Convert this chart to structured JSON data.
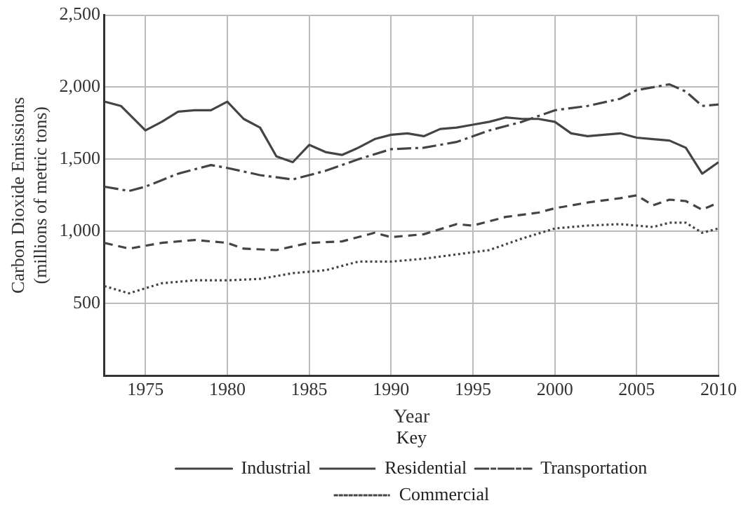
{
  "chart_data": {
    "type": "line",
    "xlabel": "Year",
    "ylabel": "Carbon Dioxide Emissions\n(millions of metric tons)",
    "legend_title": "Key",
    "legend": "bottom",
    "grid": true,
    "marker": "none",
    "xlim": [
      1972.5,
      2010
    ],
    "xticks": [
      1975,
      1980,
      1985,
      1990,
      1995,
      2000,
      2005,
      2010
    ],
    "ylim": [
      0,
      2500
    ],
    "yticks": [
      {
        "value": 0,
        "label": null
      },
      {
        "value": 500,
        "label": "500"
      },
      {
        "value": 1000,
        "label": "1,000"
      },
      {
        "value": 1500,
        "label": "1,500"
      },
      {
        "value": 2000,
        "label": "2,000"
      },
      {
        "value": 2500,
        "label": "2,500"
      }
    ],
    "series": [
      {
        "name": "Industrial",
        "color": "#444444",
        "line_style": "solid",
        "x": [
          1972.5,
          1973.5,
          1975,
          1976,
          1977,
          1978,
          1979,
          1980,
          1981,
          1982,
          1983,
          1984,
          1985,
          1986,
          1987,
          1988,
          1989,
          1990,
          1991,
          1992,
          1993,
          1994,
          1995,
          1996,
          1997,
          1998,
          1999,
          2000,
          2001,
          2002,
          2003,
          2004,
          2005,
          2006,
          2007,
          2008,
          2009,
          2010
        ],
        "values": [
          1900,
          1870,
          1700,
          1760,
          1830,
          1840,
          1840,
          1900,
          1780,
          1720,
          1520,
          1480,
          1600,
          1550,
          1530,
          1580,
          1640,
          1670,
          1680,
          1660,
          1710,
          1720,
          1740,
          1760,
          1790,
          1780,
          1780,
          1760,
          1680,
          1660,
          1670,
          1680,
          1650,
          1640,
          1630,
          1580,
          1400,
          1480
        ]
      },
      {
        "name": "Residential",
        "color": "#444444",
        "line_style": "dashed",
        "x": [
          1972.5,
          1974,
          1976,
          1978,
          1980,
          1981,
          1983,
          1985,
          1987,
          1989,
          1990,
          1992,
          1994,
          1995,
          1997,
          1999,
          2000,
          2002,
          2004,
          2005,
          2006,
          2007,
          2008,
          2009,
          2010
        ],
        "values": [
          920,
          880,
          920,
          940,
          920,
          880,
          870,
          920,
          930,
          990,
          960,
          980,
          1050,
          1040,
          1100,
          1130,
          1160,
          1200,
          1230,
          1250,
          1180,
          1220,
          1210,
          1150,
          1200
        ]
      },
      {
        "name": "Transportation",
        "color": "#444444",
        "line_style": "dashdot",
        "x": [
          1972.5,
          1974,
          1975,
          1977,
          1979,
          1980,
          1982,
          1984,
          1986,
          1988,
          1990,
          1992,
          1994,
          1996,
          1998,
          2000,
          2002,
          2004,
          2005,
          2007,
          2008,
          2009,
          2010
        ],
        "values": [
          1310,
          1280,
          1310,
          1400,
          1460,
          1440,
          1390,
          1360,
          1420,
          1500,
          1570,
          1580,
          1620,
          1700,
          1760,
          1840,
          1870,
          1920,
          1980,
          2020,
          1970,
          1870,
          1880
        ]
      },
      {
        "name": "Commercial",
        "color": "#444444",
        "line_style": "dotted",
        "x": [
          1972.5,
          1974,
          1976,
          1978,
          1980,
          1982,
          1984,
          1986,
          1988,
          1990,
          1992,
          1994,
          1996,
          1998,
          2000,
          2002,
          2004,
          2005,
          2006,
          2007,
          2008,
          2009,
          2010
        ],
        "values": [
          620,
          570,
          640,
          660,
          660,
          670,
          710,
          730,
          790,
          790,
          810,
          840,
          870,
          950,
          1020,
          1040,
          1050,
          1040,
          1030,
          1060,
          1060,
          990,
          1020
        ]
      }
    ]
  }
}
